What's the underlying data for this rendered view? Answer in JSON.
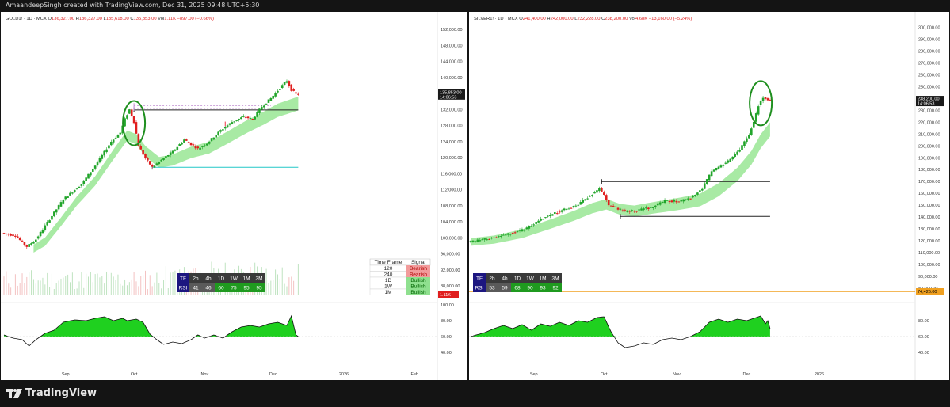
{
  "credit": "AmaandeepSingh created with TradingView.com, Dec 31, 2025 09:48 UTC+5:30",
  "brand": "TradingView",
  "colors": {
    "up": "#22a52b",
    "down": "#e01e1e",
    "bull_ma": "#9fe89a",
    "rsi_fill": "#1fd01f",
    "support_red": "#f23645",
    "support_teal": "#22c7c7",
    "circle": "#1f8f1f"
  },
  "chart_data": [
    {
      "type": "candlestick",
      "symbol": "GOLD1!",
      "legend": {
        "symbol": "GOLD1! · 1D · MCX",
        "open_l": "O",
        "open": "136,327.00",
        "high_l": "H",
        "high": "136,327.00",
        "low_l": "L",
        "low": "135,618.00",
        "close_l": "C",
        "close": "135,853.00",
        "vol_l": "Vol",
        "vol": "1.11K",
        "change": "−897.00 (−0.66%)"
      },
      "price_ticks": [
        "152,000.00",
        "148,000.00",
        "144,000.00",
        "140,000.00",
        "136,000.00",
        "132,000.00",
        "128,000.00",
        "124,000.00",
        "120,000.00",
        "116,000.00",
        "112,000.00",
        "108,000.00",
        "104,000.00",
        "100,000.00",
        "96,000.00",
        "92,000.00",
        "88,000.00"
      ],
      "price_tick_values": [
        152000,
        148000,
        144000,
        140000,
        136000,
        132000,
        128000,
        124000,
        120000,
        116000,
        112000,
        108000,
        104000,
        100000,
        96000,
        92000,
        88000
      ],
      "price_range": [
        88000,
        154000
      ],
      "last_price": "135,853.00",
      "last_price_value": 135853,
      "countdown": "14:06:53",
      "vol_label": "1.11K",
      "rsi_ticks": [
        "100.00",
        "80.00",
        "60.00",
        "40.00"
      ],
      "rsi_tick_values": [
        100,
        80,
        60,
        40
      ],
      "x_labels": [
        "Sep",
        "Oct",
        "Nov",
        "Dec",
        "2026",
        "Feb"
      ],
      "x_label_days": [
        27,
        57,
        88,
        118,
        149,
        180
      ],
      "days_span": [
        0,
        190
      ],
      "anchors": [
        [
          0,
          101200
        ],
        [
          6,
          100500
        ],
        [
          11,
          97800
        ],
        [
          15,
          99600
        ],
        [
          20,
          103800
        ],
        [
          27,
          109600
        ],
        [
          35,
          113400
        ],
        [
          42,
          118800
        ],
        [
          48,
          124000
        ],
        [
          52,
          126200
        ],
        [
          54,
          129600
        ],
        [
          56,
          132000
        ],
        [
          58,
          128900
        ],
        [
          60,
          123000
        ],
        [
          63,
          119800
        ],
        [
          66,
          117600
        ],
        [
          70,
          119400
        ],
        [
          75,
          121500
        ],
        [
          80,
          124500
        ],
        [
          86,
          122200
        ],
        [
          90,
          123600
        ],
        [
          96,
          126800
        ],
        [
          101,
          128900
        ],
        [
          106,
          130200
        ],
        [
          110,
          129600
        ],
        [
          114,
          132700
        ],
        [
          118,
          134800
        ],
        [
          122,
          137400
        ],
        [
          125,
          139200
        ],
        [
          127,
          136900
        ],
        [
          129,
          135853
        ]
      ],
      "ma_anchors": [
        [
          13,
          97300
        ],
        [
          18,
          99000
        ],
        [
          25,
          104000
        ],
        [
          32,
          109200
        ],
        [
          40,
          114200
        ],
        [
          48,
          120800
        ],
        [
          54,
          125500
        ],
        [
          58,
          124600
        ],
        [
          62,
          121600
        ],
        [
          68,
          118800
        ],
        [
          74,
          119400
        ],
        [
          82,
          121300
        ],
        [
          90,
          122500
        ],
        [
          98,
          125000
        ],
        [
          106,
          127600
        ],
        [
          114,
          129900
        ],
        [
          120,
          131800
        ],
        [
          129,
          133500
        ]
      ],
      "levels": [
        {
          "from_day": 57,
          "to_day": 129,
          "price": 131900,
          "color": "#222222"
        },
        {
          "from_day": 57,
          "to_day": 117,
          "price": 133000,
          "color": "#c08ad0",
          "dashed": true
        },
        {
          "from_day": 57,
          "to_day": 117,
          "price": 132300,
          "color": "#c08ad0",
          "dashed": true
        },
        {
          "from_day": 97,
          "to_day": 129,
          "price": 128400,
          "color": "#f23645"
        },
        {
          "from_day": 65,
          "to_day": 129,
          "price": 117600,
          "color": "#22c7c7"
        }
      ],
      "highlight_circle": {
        "day": 57,
        "price": 128600
      },
      "rsi_anchors": [
        [
          0,
          62
        ],
        [
          4,
          58
        ],
        [
          8,
          56
        ],
        [
          11,
          48
        ],
        [
          14,
          56
        ],
        [
          18,
          64
        ],
        [
          22,
          68
        ],
        [
          26,
          78
        ],
        [
          31,
          81
        ],
        [
          36,
          80
        ],
        [
          40,
          83
        ],
        [
          44,
          85
        ],
        [
          48,
          80
        ],
        [
          52,
          83
        ],
        [
          54,
          80
        ],
        [
          58,
          82
        ],
        [
          61,
          78
        ],
        [
          64,
          63
        ],
        [
          67,
          56
        ],
        [
          70,
          50
        ],
        [
          74,
          53
        ],
        [
          78,
          51
        ],
        [
          82,
          56
        ],
        [
          85,
          62
        ],
        [
          88,
          58
        ],
        [
          92,
          62
        ],
        [
          96,
          58
        ],
        [
          100,
          66
        ],
        [
          104,
          72
        ],
        [
          108,
          74
        ],
        [
          112,
          72
        ],
        [
          116,
          76
        ],
        [
          120,
          78
        ],
        [
          124,
          74
        ],
        [
          126,
          86
        ],
        [
          128,
          62
        ],
        [
          129,
          60
        ]
      ],
      "tf_table": {
        "tf_label": "TF",
        "rsi_label": "RSI",
        "timeframes": [
          "2h",
          "4h",
          "1D",
          "1W",
          "1M",
          "3M"
        ],
        "values": [
          41,
          46,
          60,
          75,
          95,
          95
        ]
      },
      "signal_table": {
        "headers": [
          "Time Frame",
          "Signal"
        ],
        "rows": [
          {
            "tf": "120",
            "signal": "Bearish"
          },
          {
            "tf": "240",
            "signal": "Bearish"
          },
          {
            "tf": "1D",
            "signal": "Bullish"
          },
          {
            "tf": "1W",
            "signal": "Bullish"
          },
          {
            "tf": "1M",
            "signal": "Bullish"
          }
        ]
      }
    },
    {
      "type": "candlestick",
      "symbol": "SILVER1!",
      "legend": {
        "symbol": "SILVER1! · 1D · MCX",
        "open_l": "O",
        "open": "241,400.00",
        "high_l": "H",
        "high": "242,000.00",
        "low_l": "L",
        "low": "232,228.00",
        "close_l": "C",
        "close": "238,200.00",
        "vol_l": "Vol",
        "vol": "4.68K",
        "change": "−13,160.00 (−5.24%)"
      },
      "price_ticks": [
        "300,000.00",
        "290,000.00",
        "280,000.00",
        "270,000.00",
        "260,000.00",
        "250,000.00",
        "240,000.00",
        "230,000.00",
        "220,000.00",
        "210,000.00",
        "200,000.00",
        "190,000.00",
        "180,000.00",
        "170,000.00",
        "160,000.00",
        "150,000.00",
        "140,000.00",
        "130,000.00",
        "120,000.00",
        "110,000.00",
        "100,000.00",
        "90,000.00",
        "80,000.00"
      ],
      "price_tick_values": [
        300000,
        290000,
        280000,
        270000,
        260000,
        250000,
        240000,
        230000,
        220000,
        210000,
        200000,
        190000,
        180000,
        170000,
        160000,
        150000,
        140000,
        130000,
        120000,
        110000,
        100000,
        90000,
        80000
      ],
      "price_range": [
        74000,
        303000
      ],
      "last_price": "238,200.00",
      "last_price_value": 238200,
      "countdown": "14:06:53",
      "hline_label": "74,426.00",
      "hline_value": 74426,
      "rsi_ticks": [
        "80.00",
        "60.00",
        "40.00"
      ],
      "rsi_tick_values": [
        80,
        60,
        40
      ],
      "x_labels": [
        "Sep",
        "Oct",
        "Nov",
        "Dec",
        "2026"
      ],
      "x_label_days": [
        27,
        57,
        88,
        118,
        149
      ],
      "days_span": [
        0,
        190
      ],
      "anchors": [
        [
          0,
          119000
        ],
        [
          8,
          121400
        ],
        [
          16,
          125200
        ],
        [
          24,
          129600
        ],
        [
          32,
          139200
        ],
        [
          40,
          145600
        ],
        [
          46,
          149800
        ],
        [
          50,
          155200
        ],
        [
          54,
          160800
        ],
        [
          56,
          164400
        ],
        [
          58,
          158000
        ],
        [
          60,
          150400
        ],
        [
          64,
          146600
        ],
        [
          68,
          144800
        ],
        [
          72,
          145600
        ],
        [
          78,
          148000
        ],
        [
          84,
          153600
        ],
        [
          90,
          153200
        ],
        [
          96,
          156800
        ],
        [
          100,
          164400
        ],
        [
          104,
          178400
        ],
        [
          108,
          183600
        ],
        [
          112,
          188200
        ],
        [
          116,
          197000
        ],
        [
          120,
          209000
        ],
        [
          122,
          220000
        ],
        [
          124,
          234000
        ],
        [
          126,
          241400
        ],
        [
          128,
          238200
        ]
      ],
      "ma_anchors": [
        [
          0,
          119000
        ],
        [
          10,
          121000
        ],
        [
          22,
          126000
        ],
        [
          34,
          134000
        ],
        [
          44,
          141000
        ],
        [
          52,
          147500
        ],
        [
          58,
          150800
        ],
        [
          64,
          146400
        ],
        [
          70,
          145000
        ],
        [
          78,
          147800
        ],
        [
          88,
          150800
        ],
        [
          98,
          154400
        ],
        [
          106,
          163000
        ],
        [
          114,
          176000
        ],
        [
          120,
          190000
        ],
        [
          124,
          204000
        ],
        [
          128,
          214000
        ]
      ],
      "levels": [
        {
          "from_day": 56,
          "to_day": 128,
          "price": 170000,
          "color": "#222222"
        },
        {
          "from_day": 64,
          "to_day": 128,
          "price": 140600,
          "color": "#222222"
        }
      ],
      "highlight_circle": {
        "day": 124,
        "price": 236000
      },
      "rsi_anchors": [
        [
          0,
          60
        ],
        [
          6,
          65
        ],
        [
          10,
          70
        ],
        [
          14,
          74
        ],
        [
          18,
          70
        ],
        [
          22,
          75
        ],
        [
          26,
          68
        ],
        [
          30,
          76
        ],
        [
          34,
          73
        ],
        [
          38,
          78
        ],
        [
          42,
          74
        ],
        [
          46,
          80
        ],
        [
          50,
          78
        ],
        [
          54,
          84
        ],
        [
          57,
          85
        ],
        [
          60,
          66
        ],
        [
          63,
          52
        ],
        [
          66,
          46
        ],
        [
          70,
          48
        ],
        [
          74,
          52
        ],
        [
          78,
          50
        ],
        [
          82,
          56
        ],
        [
          86,
          58
        ],
        [
          90,
          56
        ],
        [
          94,
          60
        ],
        [
          98,
          66
        ],
        [
          102,
          78
        ],
        [
          106,
          82
        ],
        [
          110,
          78
        ],
        [
          114,
          82
        ],
        [
          118,
          80
        ],
        [
          122,
          84
        ],
        [
          124,
          86
        ],
        [
          126,
          76
        ],
        [
          127,
          80
        ],
        [
          128,
          70
        ]
      ],
      "tf_table": {
        "tf_label": "TF",
        "rsi_label": "RSI",
        "timeframes": [
          "2h",
          "4h",
          "1D",
          "1W",
          "1M",
          "3M"
        ],
        "values": [
          53,
          59,
          68,
          90,
          93,
          92
        ]
      }
    }
  ]
}
